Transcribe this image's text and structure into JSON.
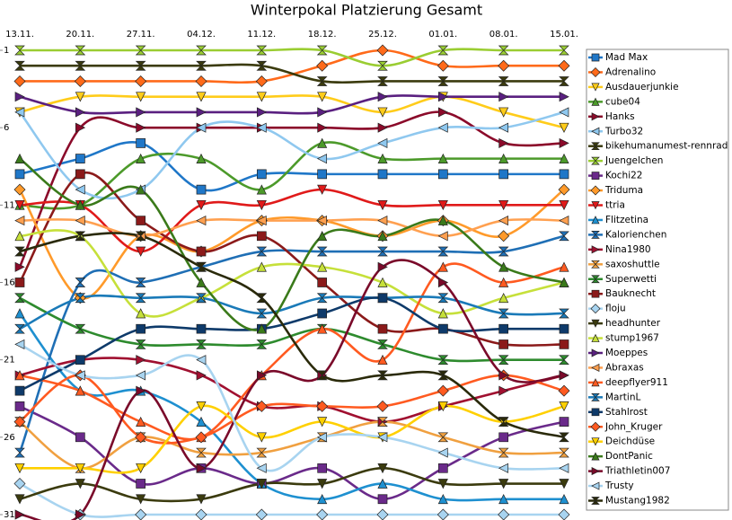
{
  "chart_data": {
    "type": "bump",
    "title": "Winterpokal Platzierung Gesamt",
    "categories": [
      "13.11.",
      "20.11.",
      "27.11.",
      "04.12.",
      "11.12.",
      "18.12.",
      "25.12.",
      "01.01.",
      "08.01.",
      "15.01."
    ],
    "ylim": [
      31,
      1
    ],
    "yticks": [
      1,
      6,
      11,
      16,
      21,
      26,
      31
    ],
    "grid": false,
    "legend": "right",
    "smooth": true,
    "series": [
      {
        "name": "Mad Max",
        "color": "#1f77c8",
        "marker": "square",
        "values": [
          9,
          8,
          7,
          10,
          9,
          9,
          9,
          9,
          9,
          9
        ]
      },
      {
        "name": "Adrenalino",
        "color": "#ff6a1a",
        "marker": "diamond",
        "values": [
          3,
          3,
          3,
          3,
          3,
          2,
          1,
          2,
          2,
          2
        ]
      },
      {
        "name": "Ausdauerjunkie",
        "color": "#ffcc1a",
        "marker": "tri-down",
        "values": [
          5,
          4,
          4,
          4,
          4,
          4,
          5,
          4,
          5,
          6
        ]
      },
      {
        "name": "cube04",
        "color": "#4c9a2a",
        "marker": "tri-up",
        "values": [
          11,
          11,
          8,
          8,
          10,
          7,
          8,
          8,
          8,
          8
        ]
      },
      {
        "name": "Hanks",
        "color": "#8b0a2a",
        "marker": "tri-right",
        "values": [
          15,
          6,
          6,
          6,
          6,
          6,
          6,
          5,
          7,
          7
        ]
      },
      {
        "name": "Turbo32",
        "color": "#8fc8ef",
        "marker": "tri-left",
        "values": [
          5,
          10,
          10,
          6,
          6,
          8,
          7,
          6,
          6,
          5
        ]
      },
      {
        "name": "bikehumanumest-rennrad",
        "color": "#3b3b0e",
        "marker": "hourglass",
        "values": [
          2,
          2,
          2,
          2,
          2,
          3,
          3,
          3,
          3,
          3
        ]
      },
      {
        "name": "Juengelchen",
        "color": "#9acd32",
        "marker": "hourglass",
        "values": [
          1,
          1,
          1,
          1,
          1,
          1,
          2,
          1,
          1,
          1
        ]
      },
      {
        "name": "Kochi22",
        "color": "#6a2a8a",
        "marker": "square",
        "values": [
          24,
          26,
          29,
          28,
          29,
          28,
          30,
          28,
          26,
          25
        ]
      },
      {
        "name": "Triduma",
        "color": "#ff9a2a",
        "marker": "diamond",
        "values": [
          10,
          17,
          13,
          14,
          12,
          12,
          13,
          12,
          13,
          10
        ]
      },
      {
        "name": "ttria",
        "color": "#e01a1a",
        "marker": "tri-down",
        "values": [
          11,
          11,
          14,
          11,
          11,
          10,
          11,
          11,
          11,
          11
        ]
      },
      {
        "name": "Flitzetina",
        "color": "#1e90d0",
        "marker": "tri-up",
        "values": [
          18,
          23,
          23,
          25,
          29,
          30,
          29,
          30,
          30,
          30
        ]
      },
      {
        "name": "Kalorienchen",
        "color": "#1f6fb5",
        "marker": "hourglass",
        "values": [
          27,
          16,
          16,
          15,
          14,
          14,
          14,
          14,
          14,
          13
        ]
      },
      {
        "name": "Nina1980",
        "color": "#a01030",
        "marker": "tri-right",
        "values": [
          22,
          21,
          21,
          22,
          24,
          24,
          25,
          24,
          23,
          22
        ]
      },
      {
        "name": "saxoshuttle",
        "color": "#f0a040",
        "marker": "hourglass",
        "values": [
          25,
          28,
          26,
          27,
          27,
          26,
          25,
          26,
          27,
          27
        ]
      },
      {
        "name": "Superwetti",
        "color": "#2e8b2e",
        "marker": "hourglass",
        "values": [
          17,
          19,
          20,
          20,
          20,
          19,
          20,
          21,
          21,
          21
        ]
      },
      {
        "name": "Bauknecht",
        "color": "#8b1a1a",
        "marker": "square",
        "values": [
          16,
          9,
          12,
          14,
          13,
          16,
          19,
          19,
          20,
          20
        ]
      },
      {
        "name": "floju",
        "color": "#a8d4f0",
        "marker": "diamond",
        "values": [
          29,
          31,
          31,
          31,
          31,
          31,
          31,
          31,
          31,
          31
        ]
      },
      {
        "name": "headhunter",
        "color": "#3b3b0e",
        "marker": "tri-down",
        "values": [
          30,
          29,
          30,
          30,
          29,
          29,
          28,
          29,
          29,
          29
        ]
      },
      {
        "name": "stump1967",
        "color": "#c6e03a",
        "marker": "tri-up",
        "values": [
          13,
          13,
          18,
          17,
          15,
          15,
          16,
          18,
          17,
          16
        ]
      },
      {
        "name": "Moeppes",
        "color": "#5a2080",
        "marker": "tri-right",
        "values": [
          4,
          5,
          5,
          5,
          5,
          5,
          4,
          4,
          4,
          4
        ]
      },
      {
        "name": "Abraxas",
        "color": "#ffa050",
        "marker": "tri-left",
        "values": [
          12,
          12,
          13,
          12,
          12,
          12,
          12,
          13,
          12,
          12
        ]
      },
      {
        "name": "deepflyer911",
        "color": "#ff5a20",
        "marker": "tri-up",
        "values": [
          22,
          23,
          25,
          26,
          22,
          19,
          21,
          15,
          16,
          15
        ]
      },
      {
        "name": "MartinL",
        "color": "#1a7ab8",
        "marker": "hourglass",
        "values": [
          19,
          17,
          17,
          17,
          18,
          17,
          17,
          17,
          18,
          18
        ]
      },
      {
        "name": "Stahlrost",
        "color": "#0e3a6a",
        "marker": "square",
        "values": [
          23,
          21,
          19,
          19,
          19,
          18,
          17,
          19,
          19,
          19
        ]
      },
      {
        "name": "John_Kruger",
        "color": "#ff5a20",
        "marker": "diamond",
        "values": [
          25,
          22,
          26,
          26,
          24,
          24,
          24,
          23,
          22,
          23
        ]
      },
      {
        "name": "Deichdüse",
        "color": "#ffd000",
        "marker": "tri-down",
        "values": [
          28,
          28,
          28,
          24,
          26,
          25,
          26,
          24,
          25,
          24
        ]
      },
      {
        "name": "DontPanic",
        "color": "#3a7a1a",
        "marker": "tri-up",
        "values": [
          8,
          11,
          10,
          16,
          19,
          13,
          13,
          12,
          15,
          16
        ]
      },
      {
        "name": "Triathletin007",
        "color": "#7a0a2a",
        "marker": "tri-right",
        "values": [
          31,
          31,
          23,
          28,
          22,
          22,
          15,
          16,
          22,
          22
        ]
      },
      {
        "name": "Trusty",
        "color": "#a8d4f0",
        "marker": "tri-left",
        "values": [
          20,
          22,
          22,
          21,
          28,
          26,
          26,
          27,
          28,
          28
        ]
      },
      {
        "name": "Mustang1982",
        "color": "#2a2a0a",
        "marker": "hourglass",
        "values": [
          14,
          13,
          13,
          15,
          17,
          22,
          22,
          22,
          25,
          26
        ]
      }
    ]
  }
}
